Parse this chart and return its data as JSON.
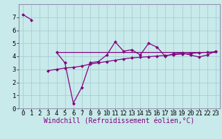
{
  "xlabel": "Windchill (Refroidissement éolien,°C)",
  "background_color": "#c8eaea",
  "line_color": "#800080",
  "grid_color": "#a0c8d0",
  "spine_color": "#9090b0",
  "main_x": [
    0,
    1,
    2,
    3,
    4,
    5,
    6,
    7,
    8,
    9,
    10,
    11,
    12,
    13,
    14,
    15,
    16,
    17,
    18,
    19,
    20,
    21,
    22,
    23
  ],
  "main_y": [
    7.2,
    6.8,
    null,
    null,
    4.3,
    3.5,
    0.4,
    1.6,
    3.5,
    3.6,
    4.1,
    5.1,
    4.4,
    4.5,
    4.1,
    5.0,
    4.7,
    4.0,
    4.2,
    4.25,
    4.1,
    3.95,
    4.1,
    4.4
  ],
  "hline_x": [
    4,
    23
  ],
  "hline_y": [
    4.3,
    4.3
  ],
  "rise_x": [
    3,
    4,
    5,
    6,
    7,
    8,
    9,
    10,
    11,
    12,
    13,
    14,
    15,
    16,
    17,
    18,
    19,
    20,
    21,
    22,
    23
  ],
  "rise_y": [
    2.9,
    3.0,
    3.1,
    3.15,
    3.25,
    3.4,
    3.5,
    3.6,
    3.7,
    3.8,
    3.88,
    3.93,
    3.97,
    4.02,
    4.07,
    4.12,
    4.17,
    4.22,
    4.27,
    4.3,
    4.35
  ],
  "ylim": [
    0,
    8
  ],
  "xlim": [
    -0.5,
    23.5
  ],
  "yticks": [
    0,
    1,
    2,
    3,
    4,
    5,
    6,
    7
  ],
  "xticks": [
    0,
    1,
    2,
    3,
    4,
    5,
    6,
    7,
    8,
    9,
    10,
    11,
    12,
    13,
    14,
    15,
    16,
    17,
    18,
    19,
    20,
    21,
    22,
    23
  ],
  "tick_fontsize": 6.5,
  "label_fontsize": 7.0
}
